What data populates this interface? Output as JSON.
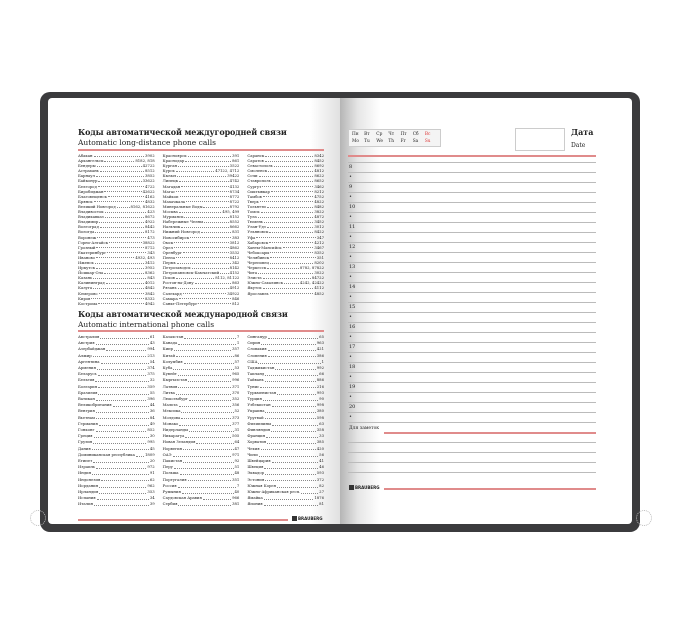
{
  "left_page": {
    "long_distance": {
      "title": "Коды автоматической междугородней связи",
      "subtitle": "Automatic long-distance phone calls",
      "columns": [
        [
          [
            "Абакан",
            "3902"
          ],
          [
            "Архангельск",
            "8182, 818"
          ],
          [
            "Бендеры",
            "42722"
          ],
          [
            "Астрахань",
            "8512"
          ],
          [
            "Барнаул",
            "3852"
          ],
          [
            "Байконур",
            "33622"
          ],
          [
            "Белгород",
            "4722"
          ],
          [
            "Биробиджан",
            "42622"
          ],
          [
            "Благовещенск",
            "4162"
          ],
          [
            "Брянск",
            "4832"
          ],
          [
            "Великий Новгород",
            "8162, 81622"
          ],
          [
            "Владивосток",
            "423"
          ],
          [
            "Владикавказ",
            "8672"
          ],
          [
            "Владимир",
            "4922"
          ],
          [
            "Волгоград",
            "8442"
          ],
          [
            "Вологда",
            "8172"
          ],
          [
            "Воронеж",
            "473"
          ],
          [
            "Горно-Алтайск",
            "38822"
          ],
          [
            "Грозный",
            "8712"
          ],
          [
            "Екатеринбург",
            "343"
          ],
          [
            "Иваново",
            "4932, 493"
          ],
          [
            "Ижевск",
            "3412"
          ],
          [
            "Иркутск",
            "3952"
          ],
          [
            "Йошкар-Ола",
            "8362"
          ],
          [
            "Казань",
            "843"
          ],
          [
            "Калининград",
            "4012"
          ],
          [
            "Калуга",
            "4842"
          ],
          [
            "Кемерово",
            "3842"
          ],
          [
            "Киров",
            "8332"
          ],
          [
            "Кострома",
            "4942"
          ]
        ],
        [
          [
            "Красноярск",
            "391"
          ],
          [
            "Краснодар",
            "861"
          ],
          [
            "Курган",
            "3522"
          ],
          [
            "Курск",
            "47122, 4712"
          ],
          [
            "Кызыл",
            "39422"
          ],
          [
            "Липецк",
            "4742"
          ],
          [
            "Магадан",
            "4132"
          ],
          [
            "Магас",
            "8734"
          ],
          [
            "Майкоп",
            "8772"
          ],
          [
            "Махачкала",
            "8722"
          ],
          [
            "Минеральные Воды",
            "8792"
          ],
          [
            "Москва",
            "495, 499"
          ],
          [
            "Мурманск",
            "8152"
          ],
          [
            "Набережные Челны",
            "8552"
          ],
          [
            "Нальчик",
            "8662"
          ],
          [
            "Нижний Новгород",
            "831"
          ],
          [
            "Новосибирск",
            "383"
          ],
          [
            "Омск",
            "3812"
          ],
          [
            "Орел",
            "4862"
          ],
          [
            "Оренбург",
            "3532"
          ],
          [
            "Пенза",
            "8412"
          ],
          [
            "Пермь",
            "342"
          ],
          [
            "Петрозаводск",
            "8142"
          ],
          [
            "Петропавловск-Камчатский",
            "4152"
          ],
          [
            "Псков",
            "8112, 81122"
          ],
          [
            "Ростов-на-Дону",
            "863"
          ],
          [
            "Рязань",
            "4912"
          ],
          [
            "Салехард",
            "34922"
          ],
          [
            "Самара",
            "846"
          ],
          [
            "Санкт-Петербург",
            "812"
          ]
        ],
        [
          [
            "Саранск",
            "8342"
          ],
          [
            "Саратов",
            "8452"
          ],
          [
            "Севастополь",
            "8692"
          ],
          [
            "Смоленск",
            "4812"
          ],
          [
            "Сочи",
            "8622"
          ],
          [
            "Ставрополь",
            "8652"
          ],
          [
            "Сургут",
            "3462"
          ],
          [
            "Сыктывкар",
            "8212"
          ],
          [
            "Тамбов",
            "4752"
          ],
          [
            "Тверь",
            "4822"
          ],
          [
            "Тольятти",
            "8482"
          ],
          [
            "Томск",
            "3822"
          ],
          [
            "Тула",
            "4872"
          ],
          [
            "Тюмень",
            "3452"
          ],
          [
            "Улан-Удэ",
            "3012"
          ],
          [
            "Ульяновск",
            "8422"
          ],
          [
            "Уфа",
            "347"
          ],
          [
            "Хабаровск",
            "4212"
          ],
          [
            "Ханты-Мансийск",
            "3467"
          ],
          [
            "Чебоксары",
            "8352"
          ],
          [
            "Челябинск",
            "351"
          ],
          [
            "Череповец",
            "8202"
          ],
          [
            "Черкесск",
            "8782, 87822"
          ],
          [
            "Чита",
            "3022"
          ],
          [
            "Элиста",
            "84722"
          ],
          [
            "Южно-Сахалинск",
            "4242, 42422"
          ],
          [
            "Якутск",
            "4112"
          ],
          [
            "Ярославль",
            "4852"
          ]
        ]
      ]
    },
    "international": {
      "title": "Коды автоматической международной связи",
      "subtitle": "Automatic international phone calls",
      "columns": [
        [
          [
            "Австралия",
            "61"
          ],
          [
            "Австрия",
            "43"
          ],
          [
            "Азербайджан",
            "994"
          ],
          [
            "Алжир",
            "213"
          ],
          [
            "Аргентина",
            "54"
          ],
          [
            "Армения",
            "374"
          ],
          [
            "Беларусь",
            "375"
          ],
          [
            "Бельгия",
            "32"
          ],
          [
            "Болгария",
            "359"
          ],
          [
            "Бразилия",
            "55"
          ],
          [
            "Ватикан",
            "396"
          ],
          [
            "Великобритания",
            "44"
          ],
          [
            "Венгрия",
            "36"
          ],
          [
            "Вьетнам",
            "84"
          ],
          [
            "Германия",
            "49"
          ],
          [
            "Гонконг",
            "852"
          ],
          [
            "Греция",
            "30"
          ],
          [
            "Грузия",
            "995"
          ],
          [
            "Дания",
            "45"
          ],
          [
            "Доминиканская республика",
            "1809"
          ],
          [
            "Египет",
            "20"
          ],
          [
            "Израиль",
            "972"
          ],
          [
            "Индия",
            "91"
          ],
          [
            "Индонезия",
            "62"
          ],
          [
            "Иордания",
            "962"
          ],
          [
            "Ирландия",
            "353"
          ],
          [
            "Испания",
            "34"
          ],
          [
            "Италия",
            "39"
          ]
        ],
        [
          [
            "Казахстан",
            "7"
          ],
          [
            "Канада",
            "1"
          ],
          [
            "Кипр",
            "357"
          ],
          [
            "Китай",
            "86"
          ],
          [
            "Колумбия",
            "57"
          ],
          [
            "Куба",
            "53"
          ],
          [
            "Кувейт",
            "965"
          ],
          [
            "Кыргызстан",
            "996"
          ],
          [
            "Латвия",
            "371"
          ],
          [
            "Литва",
            "370"
          ],
          [
            "Люксембург",
            "352"
          ],
          [
            "Мальта",
            "356"
          ],
          [
            "Мексика",
            "52"
          ],
          [
            "Молдова",
            "373"
          ],
          [
            "Монако",
            "377"
          ],
          [
            "Нидерланды",
            "31"
          ],
          [
            "Никарагуа",
            "505"
          ],
          [
            "Новая Зеландия",
            "64"
          ],
          [
            "Норвегия",
            "47"
          ],
          [
            "ОАЭ",
            "971"
          ],
          [
            "Пакистан",
            "92"
          ],
          [
            "Перу",
            "51"
          ],
          [
            "Польша",
            "48"
          ],
          [
            "Португалия",
            "351"
          ],
          [
            "Россия",
            "7"
          ],
          [
            "Румыния",
            "40"
          ],
          [
            "Саудовская Аравия",
            "966"
          ],
          [
            "Сербия",
            "381"
          ]
        ],
        [
          [
            "Сингапур",
            "65"
          ],
          [
            "Сирия",
            "963"
          ],
          [
            "Словакия",
            "421"
          ],
          [
            "Словения",
            "386"
          ],
          [
            "США",
            "1"
          ],
          [
            "Таджикистан",
            "992"
          ],
          [
            "Таиланд",
            "66"
          ],
          [
            "Тайвань",
            "886"
          ],
          [
            "Тунис",
            "216"
          ],
          [
            "Туркменистан",
            "993"
          ],
          [
            "Турция",
            "90"
          ],
          [
            "Узбекистан",
            "998"
          ],
          [
            "Украина",
            "380"
          ],
          [
            "Уругвай",
            "598"
          ],
          [
            "Филиппины",
            "63"
          ],
          [
            "Финляндия",
            "358"
          ],
          [
            "Франция",
            "33"
          ],
          [
            "Хорватия",
            "385"
          ],
          [
            "Чехия",
            "420"
          ],
          [
            "Чили",
            "56"
          ],
          [
            "Швейцария",
            "41"
          ],
          [
            "Швеция",
            "46"
          ],
          [
            "Эквадор",
            "593"
          ],
          [
            "Эстония",
            "372"
          ],
          [
            "Южная Корея",
            "82"
          ],
          [
            "Южно-Африканская респ.",
            "27"
          ],
          [
            "Ямайка",
            "1876"
          ],
          [
            "Япония",
            "81"
          ]
        ]
      ]
    },
    "logo": "BRAUBERG"
  },
  "right_page": {
    "weekdays_ru": [
      "Пн",
      "Вт",
      "Ср",
      "Чт",
      "Пт",
      "Сб",
      "Вс"
    ],
    "weekdays_en": [
      "Mo",
      "Tu",
      "We",
      "Th",
      "Fr",
      "Sa",
      "Su"
    ],
    "date_label_ru": "Дата",
    "date_label_en": "Date",
    "hours": [
      "8",
      "9",
      "10",
      "11",
      "12",
      "13",
      "14",
      "15",
      "16",
      "17",
      "18",
      "19",
      "20"
    ],
    "half_marker": "•",
    "notes_label": "Для заметок",
    "logo": "BRAUBERG"
  },
  "colors": {
    "cover": "#3b3b3d",
    "accent_red": "#e08b8b",
    "sunday": "#dd3333"
  }
}
